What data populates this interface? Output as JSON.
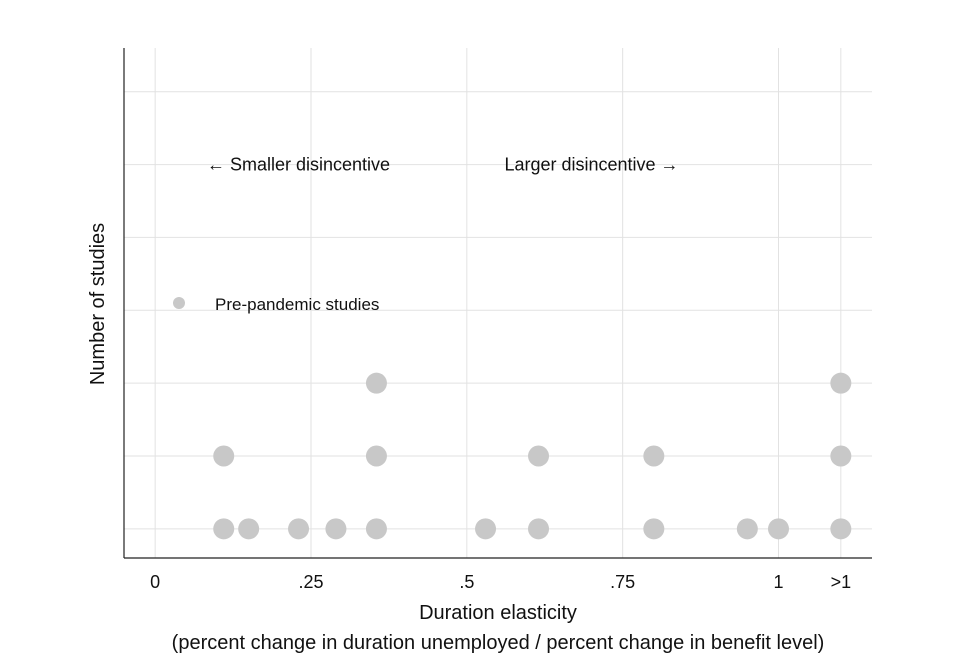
{
  "chart_data": {
    "type": "scatter",
    "xlabel": "Duration elasticity",
    "xlabel_sub": "(percent change in duration unemployed / percent change in benefit level)",
    "ylabel": "Number of studies",
    "xlim": [
      -0.05,
      1.15
    ],
    "ylim": [
      0.6,
      7.6
    ],
    "x_ticks": [
      {
        "value": 0,
        "label": "0"
      },
      {
        "value": 0.25,
        "label": ".25"
      },
      {
        "value": 0.5,
        "label": ".5"
      },
      {
        "value": 0.75,
        "label": ".75"
      },
      {
        "value": 1,
        "label": "1"
      },
      {
        "value": 1.1,
        "label": ">1"
      }
    ],
    "y_gridlines": [
      1,
      2,
      3,
      4,
      5,
      6,
      7
    ],
    "grid": true,
    "series": [
      {
        "name": "Pre-pandemic studies",
        "color": "#c8c8c8",
        "points": [
          {
            "x": 0.11,
            "y": 1
          },
          {
            "x": 0.11,
            "y": 2
          },
          {
            "x": 0.15,
            "y": 1
          },
          {
            "x": 0.23,
            "y": 1
          },
          {
            "x": 0.29,
            "y": 1
          },
          {
            "x": 0.355,
            "y": 1
          },
          {
            "x": 0.355,
            "y": 2
          },
          {
            "x": 0.355,
            "y": 3
          },
          {
            "x": 0.53,
            "y": 1
          },
          {
            "x": 0.615,
            "y": 1
          },
          {
            "x": 0.615,
            "y": 2
          },
          {
            "x": 0.8,
            "y": 1
          },
          {
            "x": 0.8,
            "y": 2
          },
          {
            "x": 0.95,
            "y": 1
          },
          {
            "x": 1.0,
            "y": 1
          },
          {
            "x": 1.1,
            "y": 1
          },
          {
            "x": 1.1,
            "y": 2
          },
          {
            "x": 1.1,
            "y": 3
          }
        ]
      }
    ],
    "annotations": [
      {
        "text": "← Smaller disincentive",
        "x": 0.23,
        "y": 6
      },
      {
        "text": "Larger disincentive →",
        "x": 0.7,
        "y": 6
      }
    ],
    "legend": {
      "label": "Pre-pandemic studies",
      "position": "left"
    }
  }
}
